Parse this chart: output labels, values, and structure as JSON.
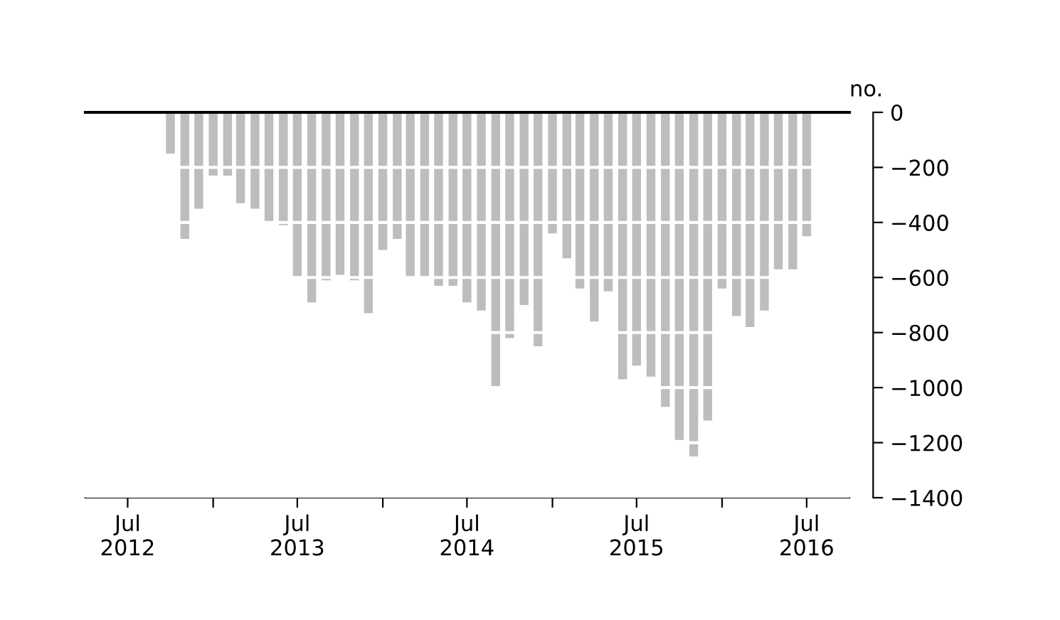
{
  "chart_data": {
    "type": "bar",
    "ylabel": "no.",
    "x": [
      "2012-10",
      "2012-11",
      "2012-12",
      "2013-01",
      "2013-02",
      "2013-03",
      "2013-04",
      "2013-05",
      "2013-06",
      "2013-07",
      "2013-08",
      "2013-09",
      "2013-10",
      "2013-11",
      "2013-12",
      "2014-01",
      "2014-02",
      "2014-03",
      "2014-04",
      "2014-05",
      "2014-06",
      "2014-07",
      "2014-08",
      "2014-09",
      "2014-10",
      "2014-11",
      "2014-12",
      "2015-01",
      "2015-02",
      "2015-03",
      "2015-04",
      "2015-05",
      "2015-06",
      "2015-07",
      "2015-08",
      "2015-09",
      "2015-10",
      "2015-11",
      "2015-12",
      "2016-01",
      "2016-02",
      "2016-03",
      "2016-04",
      "2016-05",
      "2016-06",
      "2016-07"
    ],
    "values": [
      -150,
      -460,
      -350,
      -230,
      -230,
      -330,
      -350,
      -400,
      -410,
      -600,
      -690,
      -610,
      -590,
      -610,
      -730,
      -500,
      -460,
      -600,
      -600,
      -630,
      -630,
      -690,
      -720,
      -1000,
      -820,
      -700,
      -850,
      -440,
      -530,
      -640,
      -760,
      -650,
      -970,
      -920,
      -960,
      -1070,
      -1190,
      -1250,
      -1120,
      -640,
      -740,
      -780,
      -720,
      -570,
      -570,
      -450
    ],
    "color": "#bdbdbd",
    "ylim": [
      -1400,
      0
    ],
    "yticks": [
      0,
      -200,
      -400,
      -600,
      -800,
      -1000,
      -1200,
      -1400
    ],
    "xlim": [
      "2012-04",
      "2016-10"
    ],
    "xticks": [
      {
        "value": "2012-07",
        "label": "Jul\n2012"
      },
      {
        "value": "2013-01",
        "label": null
      },
      {
        "value": "2013-07",
        "label": "Jul\n2013"
      },
      {
        "value": "2014-01",
        "label": null
      },
      {
        "value": "2014-07",
        "label": "Jul\n2014"
      },
      {
        "value": "2015-01",
        "label": null
      },
      {
        "value": "2015-07",
        "label": "Jul\n2015"
      },
      {
        "value": "2016-01",
        "label": null
      },
      {
        "value": "2016-07",
        "label": "Jul\n2016"
      }
    ],
    "grid": "y"
  }
}
